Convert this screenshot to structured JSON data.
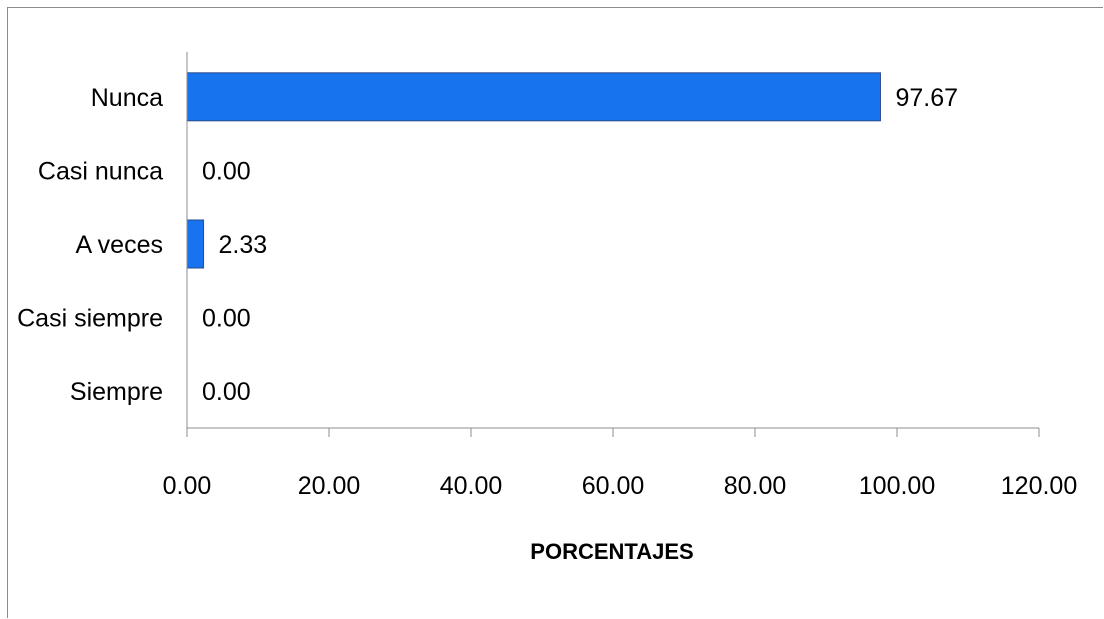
{
  "colors": {
    "bar": "#1874ee",
    "bar_stroke": "#2a4a8a",
    "axis": "#8c8c8c"
  },
  "chart_data": {
    "type": "bar",
    "orientation": "horizontal",
    "categories": [
      "Nunca",
      "Casi nunca",
      "A veces",
      "Casi siempre",
      "Siempre"
    ],
    "values": [
      97.67,
      0.0,
      2.33,
      0.0,
      0.0
    ],
    "value_labels": [
      "97.67",
      "0.00",
      "2.33",
      "0.00",
      "0.00"
    ],
    "xlabel": "PORCENTAJES",
    "ylabel": "",
    "xlim": [
      0,
      120
    ],
    "xticks": [
      0,
      20,
      40,
      60,
      80,
      100,
      120
    ],
    "xtick_labels": [
      "0.00",
      "20.00",
      "40.00",
      "60.00",
      "80.00",
      "100.00",
      "120.00"
    ],
    "grid": false,
    "legend": "none"
  }
}
